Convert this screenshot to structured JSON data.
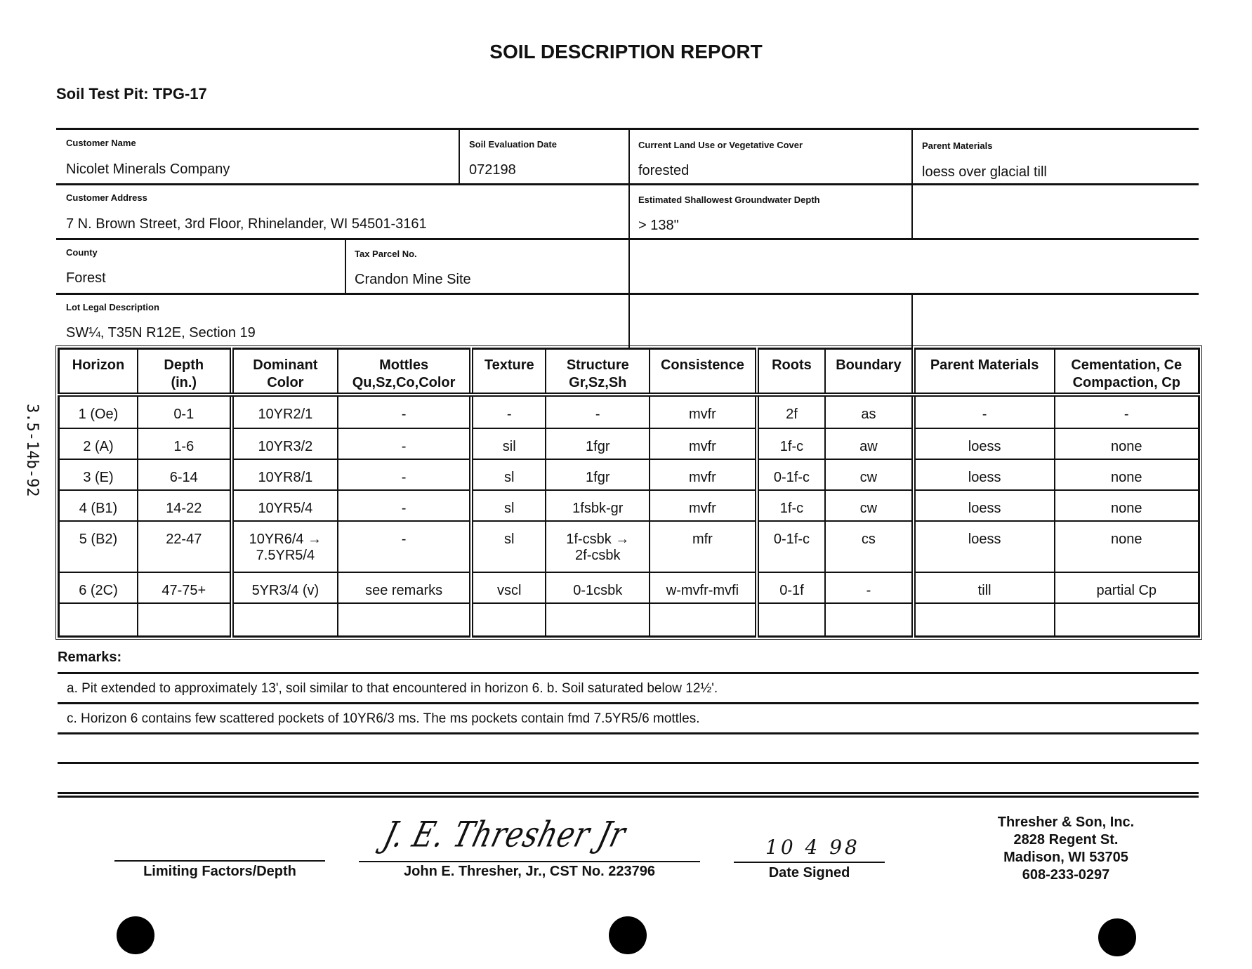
{
  "title": "SOIL DESCRIPTION REPORT",
  "test_pit": "Soil Test Pit:  TPG-17",
  "margin_note": "3.5-14b-92",
  "form": {
    "customer_name": {
      "label": "Customer Name",
      "value": "Nicolet Minerals Company"
    },
    "evaluation_date": {
      "label": "Soil Evaluation Date",
      "value": "072198"
    },
    "land_use": {
      "label": "Current Land Use or Vegetative Cover",
      "value": "forested"
    },
    "parent_materials": {
      "label": "Parent Materials",
      "value": "loess over glacial till"
    },
    "customer_address": {
      "label": "Customer Address",
      "value": "7 N. Brown Street, 3rd Floor, Rhinelander, WI  54501-3161"
    },
    "groundwater_depth": {
      "label": "Estimated Shallowest Groundwater Depth",
      "value": "> 138\""
    },
    "county": {
      "label": "County",
      "value": "Forest"
    },
    "tax_parcel": {
      "label": "Tax Parcel No.",
      "value": "Crandon Mine Site"
    },
    "lot_legal": {
      "label": "Lot Legal Description",
      "value": "SW¼, T35N R12E, Section 19"
    }
  },
  "table": {
    "headers": [
      "Horizon",
      "Depth\n(in.)",
      "Dominant\nColor",
      "Mottles\nQu,Sz,Co,Color",
      "Texture",
      "Structure\nGr,Sz,Sh",
      "Consistence",
      "Roots",
      "Boundary",
      "Parent Materials",
      "Cementation, Ce\nCompaction, Cp"
    ],
    "rows": [
      [
        "1 (Oe)",
        "0-1",
        "10YR2/1",
        "-",
        "-",
        "-",
        "mvfr",
        "2f",
        "as",
        "-",
        "-"
      ],
      [
        "2 (A)",
        "1-6",
        "10YR3/2",
        "-",
        "sil",
        "1fgr",
        "mvfr",
        "1f-c",
        "aw",
        "loess",
        "none"
      ],
      [
        "3 (E)",
        "6-14",
        "10YR8/1",
        "-",
        "sl",
        "1fgr",
        "mvfr",
        "0-1f-c",
        "cw",
        "loess",
        "none"
      ],
      [
        "4 (B1)",
        "14-22",
        "10YR5/4",
        "-",
        "sl",
        "1fsbk-gr",
        "mvfr",
        "1f-c",
        "cw",
        "loess",
        "none"
      ],
      [
        "5 (B2)",
        "22-47",
        "10YR6/4 →\n7.5YR5/4",
        "-",
        "sl",
        "1f-csbk →\n2f-csbk",
        "mfr",
        "0-1f-c",
        "cs",
        "loess",
        "none"
      ],
      [
        "6 (2C)",
        "47-75+",
        "5YR3/4 (v)",
        "see remarks",
        "vscl",
        "0-1csbk",
        "w-mvfr-mvfi",
        "0-1f",
        "-",
        "till",
        "partial Cp"
      ],
      [
        "",
        "",
        "",
        "",
        "",
        "",
        "",
        "",
        "",
        "",
        ""
      ]
    ]
  },
  "remarks": {
    "label": "Remarks:",
    "lines": [
      "a.  Pit extended to approximately 13', soil similar to that encountered in horizon 6.   b.  Soil saturated below 12½'.",
      "c.  Horizon 6 contains few scattered pockets of 10YR6/3 ms.  The ms pockets contain fmd 7.5YR5/6 mottles."
    ]
  },
  "signature": {
    "limiting_label": "Limiting Factors/Depth",
    "signer_label": "John E. Thresher, Jr., CST No. 223796",
    "signature_handwritten": "J. E. Thresher Jr",
    "date_label": "Date Signed",
    "date_value": "10 4 98"
  },
  "company": {
    "name": "Thresher & Son, Inc.",
    "street": "2828 Regent St.",
    "city": "Madison, WI  53705",
    "phone": "608-233-0297"
  }
}
